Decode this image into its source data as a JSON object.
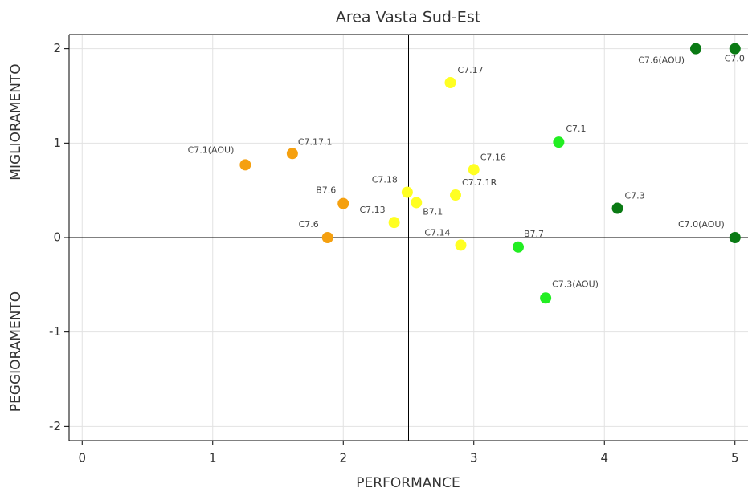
{
  "chart_data": {
    "type": "scatter",
    "title": "Area Vasta Sud-Est",
    "xlabel": "PERFORMANCE",
    "ylabel_top": "MIGLIORAMENTO",
    "ylabel_bottom": "PEGGIORAMENTO",
    "labels": [
      "C7.0",
      "C7.6(AOU)",
      "C7.17",
      "C7.1",
      "C7.17.1",
      "C7.1(AOU)",
      "C7.16",
      "C7.18",
      "C7.7.1R",
      "B7.1",
      "B7.6",
      "C7.3",
      "C7.13",
      "C7.6",
      "C7.0(AOU)",
      "C7.14",
      "B7.7",
      "C7.3(AOU)"
    ],
    "x": [
      5,
      4.7,
      2.82,
      3.65,
      1.61,
      1.25,
      3.0,
      2.49,
      2.86,
      2.56,
      2.0,
      4.1,
      2.39,
      1.88,
      5,
      2.9,
      3.34,
      3.55
    ],
    "y": [
      2,
      2,
      1.64,
      1.01,
      0.89,
      0.77,
      0.72,
      0.48,
      0.45,
      0.37,
      0.36,
      0.31,
      0.16,
      0,
      0,
      -0.08,
      -0.1,
      -0.64
    ],
    "colors": [
      "#0a7a14",
      "#0a7a14",
      "#ffff22",
      "#22ee22",
      "#f5a00f",
      "#f5a00f",
      "#ffff22",
      "#ffff22",
      "#ffff22",
      "#ffff22",
      "#f5a00f",
      "#0a7a14",
      "#ffff22",
      "#f5a00f",
      "#0a7a14",
      "#ffff22",
      "#22ee22",
      "#22ee22"
    ],
    "xlim": [
      -0.1,
      5.1
    ],
    "ylim": [
      -2.15,
      2.15
    ],
    "xticks": [
      0,
      1,
      2,
      3,
      4,
      5
    ],
    "yticks": [
      -2,
      -1,
      0,
      1,
      2
    ],
    "vline": 2.5,
    "hline": 0,
    "grid": true
  }
}
